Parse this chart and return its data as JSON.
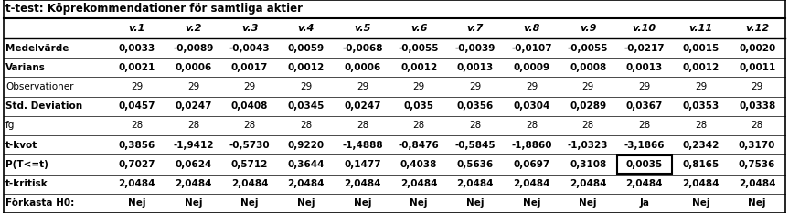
{
  "title": "t-test: Köprekommendationer för samtliga aktier",
  "columns": [
    "",
    "v.1",
    "v.2",
    "v.3",
    "v.4",
    "v.5",
    "v.6",
    "v.7",
    "v.8",
    "v.9",
    "v.10",
    "v.11",
    "v.12"
  ],
  "rows": [
    [
      "Medelvärde",
      "0,0033",
      "-0,0089",
      "-0,0043",
      "0,0059",
      "-0,0068",
      "-0,0055",
      "-0,0039",
      "-0,0107",
      "-0,0055",
      "-0,0217",
      "0,0015",
      "0,0020"
    ],
    [
      "Varians",
      "0,0021",
      "0,0006",
      "0,0017",
      "0,0012",
      "0,0006",
      "0,0012",
      "0,0013",
      "0,0009",
      "0,0008",
      "0,0013",
      "0,0012",
      "0,0011"
    ],
    [
      "Observationer",
      "29",
      "29",
      "29",
      "29",
      "29",
      "29",
      "29",
      "29",
      "29",
      "29",
      "29",
      "29"
    ],
    [
      "Std. Deviation",
      "0,0457",
      "0,0247",
      "0,0408",
      "0,0345",
      "0,0247",
      "0,035",
      "0,0356",
      "0,0304",
      "0,0289",
      "0,0367",
      "0,0353",
      "0,0338"
    ],
    [
      "fg",
      "28",
      "28",
      "28",
      "28",
      "28",
      "28",
      "28",
      "28",
      "28",
      "28",
      "28",
      "28"
    ],
    [
      "t-kvot",
      "0,3856",
      "-1,9412",
      "-0,5730",
      "0,9220",
      "-1,4888",
      "-0,8476",
      "-0,5845",
      "-1,8860",
      "-1,0323",
      "-3,1866",
      "0,2342",
      "0,3170"
    ],
    [
      "P(T<=t)",
      "0,7027",
      "0,0624",
      "0,5712",
      "0,3644",
      "0,1477",
      "0,4038",
      "0,5636",
      "0,0697",
      "0,3108",
      "0,0035",
      "0,8165",
      "0,7536"
    ],
    [
      "t-kritisk",
      "2,0484",
      "2,0484",
      "2,0484",
      "2,0484",
      "2,0484",
      "2,0484",
      "2,0484",
      "2,0484",
      "2,0484",
      "2,0484",
      "2,0484",
      "2,0484"
    ],
    [
      "Förkasta H0:",
      "Nej",
      "Nej",
      "Nej",
      "Nej",
      "Nej",
      "Nej",
      "Nej",
      "Nej",
      "Nej",
      "Ja",
      "Nej",
      "Nej"
    ]
  ],
  "highlighted_cell_row": 6,
  "highlighted_cell_col": 10,
  "bold_row_labels": [
    "Medelvärde",
    "Varians",
    "Std. Deviation",
    "t-kvot",
    "P(T<=t)",
    "t-kritisk",
    "Förkasta H0:"
  ],
  "bg_color": "#ffffff",
  "title_fontsize": 8.5,
  "header_fontsize": 8.0,
  "cell_fontsize": 7.5,
  "fig_width": 8.63,
  "fig_height": 2.33,
  "dpi": 100
}
